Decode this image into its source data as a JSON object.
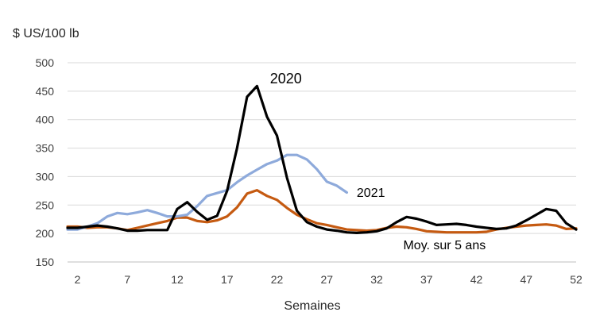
{
  "chart_data": {
    "type": "line",
    "title": "",
    "unit_label": "$ US/100 lb",
    "xlabel": "Semaines",
    "ylabel": "",
    "xlim": [
      1,
      52
    ],
    "ylim": [
      150,
      500
    ],
    "y_ticks": [
      150,
      200,
      250,
      300,
      350,
      400,
      450,
      500
    ],
    "x_ticks": [
      2,
      7,
      12,
      17,
      22,
      27,
      32,
      37,
      42,
      47,
      52
    ],
    "grid": "horizontal",
    "legend": "none",
    "series": [
      {
        "name": "2020",
        "color": "#000000",
        "x": [
          1,
          2,
          3,
          4,
          5,
          6,
          7,
          8,
          9,
          10,
          11,
          12,
          13,
          14,
          15,
          16,
          17,
          18,
          19,
          20,
          21,
          22,
          23,
          24,
          25,
          26,
          27,
          28,
          29,
          30,
          31,
          32,
          33,
          34,
          35,
          36,
          37,
          38,
          39,
          40,
          41,
          42,
          43,
          44,
          45,
          46,
          47,
          48,
          49,
          50,
          51,
          52
        ],
        "values": [
          210,
          210,
          212,
          214,
          212,
          209,
          205,
          205,
          206,
          206,
          206,
          243,
          255,
          238,
          224,
          231,
          275,
          350,
          440,
          459,
          405,
          372,
          298,
          240,
          220,
          212,
          207,
          205,
          202,
          201,
          202,
          204,
          209,
          220,
          229,
          226,
          221,
          215,
          216,
          217,
          215,
          212,
          210,
          208,
          209,
          214,
          223,
          233,
          243,
          240,
          218,
          207
        ]
      },
      {
        "name": "2021",
        "color": "#8eaadb",
        "x": [
          1,
          2,
          3,
          4,
          5,
          6,
          7,
          8,
          9,
          10,
          11,
          12,
          13,
          14,
          15,
          16,
          17,
          18,
          19,
          20,
          21,
          22,
          23,
          24,
          25,
          26,
          27,
          28,
          29
        ],
        "values": [
          207,
          207,
          212,
          218,
          230,
          236,
          234,
          237,
          241,
          236,
          230,
          230,
          233,
          248,
          266,
          271,
          276,
          290,
          302,
          312,
          322,
          328,
          338,
          338,
          330,
          313,
          291,
          284,
          272
        ]
      },
      {
        "name": "Moy. sur 5 ans",
        "color": "#c55a11",
        "x": [
          1,
          2,
          3,
          4,
          5,
          6,
          7,
          8,
          9,
          10,
          11,
          12,
          13,
          14,
          15,
          16,
          17,
          18,
          19,
          20,
          21,
          22,
          23,
          24,
          25,
          26,
          27,
          28,
          29,
          30,
          31,
          32,
          33,
          34,
          35,
          36,
          37,
          38,
          39,
          40,
          41,
          42,
          43,
          44,
          45,
          46,
          47,
          48,
          49,
          50,
          51,
          52
        ],
        "values": [
          212,
          212,
          210,
          211,
          211,
          209,
          206,
          210,
          214,
          218,
          222,
          228,
          228,
          222,
          220,
          223,
          230,
          246,
          270,
          276,
          266,
          259,
          245,
          233,
          225,
          218,
          215,
          211,
          207,
          206,
          205,
          206,
          210,
          212,
          211,
          208,
          204,
          203,
          202,
          202,
          202,
          202,
          203,
          207,
          210,
          212,
          214,
          215,
          216,
          214,
          208,
          209
        ]
      }
    ]
  }
}
